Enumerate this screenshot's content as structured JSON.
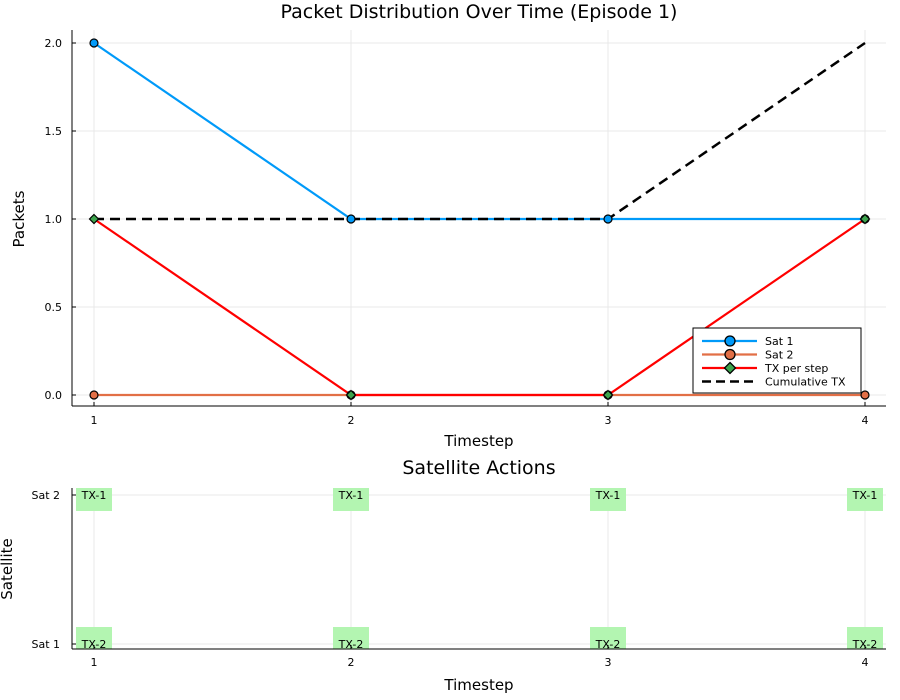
{
  "chart_data": [
    {
      "type": "line",
      "title": "Packet Distribution Over Time (Episode 1)",
      "xlabel": "Timestep",
      "ylabel": "Packets",
      "x": [
        1,
        2,
        3,
        4
      ],
      "xlim": [
        1,
        4
      ],
      "ylim": [
        0,
        2
      ],
      "xticks": [
        "1",
        "2",
        "3",
        "4"
      ],
      "yticks": [
        "0.0",
        "0.5",
        "1.0",
        "1.5",
        "2.0"
      ],
      "grid": true,
      "legend_position": "bottom-right",
      "series": [
        {
          "name": "Sat 1",
          "values": [
            2,
            1,
            1,
            1
          ],
          "color": "#009af9",
          "marker": "circle",
          "dashed": false
        },
        {
          "name": "Sat 2",
          "values": [
            0,
            0,
            0,
            0
          ],
          "color": "#e26f46",
          "marker": "circle",
          "dashed": false
        },
        {
          "name": "TX per step",
          "values": [
            1,
            0,
            0,
            1
          ],
          "color": "#ff0000",
          "marker": "diamond",
          "marker_color": "#3da44d",
          "dashed": false
        },
        {
          "name": "Cumulative TX",
          "values": [
            1,
            1,
            1,
            2
          ],
          "color": "#000000",
          "marker": "none",
          "dashed": true
        }
      ]
    },
    {
      "type": "table",
      "title": "Satellite Actions",
      "xlabel": "Timestep",
      "ylabel": "Satellite",
      "x": [
        1,
        2,
        3,
        4
      ],
      "xticks": [
        "1",
        "2",
        "3",
        "4"
      ],
      "rows": [
        "Sat 2",
        "Sat 1"
      ],
      "actions": [
        {
          "satellite": "Sat 2",
          "labels": [
            "TX-1",
            "TX-1",
            "TX-1",
            "TX-1"
          ]
        },
        {
          "satellite": "Sat 1",
          "labels": [
            "TX-2",
            "TX-2",
            "TX-2",
            "TX-2"
          ]
        }
      ],
      "box_color": "#b3f5b1"
    }
  ]
}
